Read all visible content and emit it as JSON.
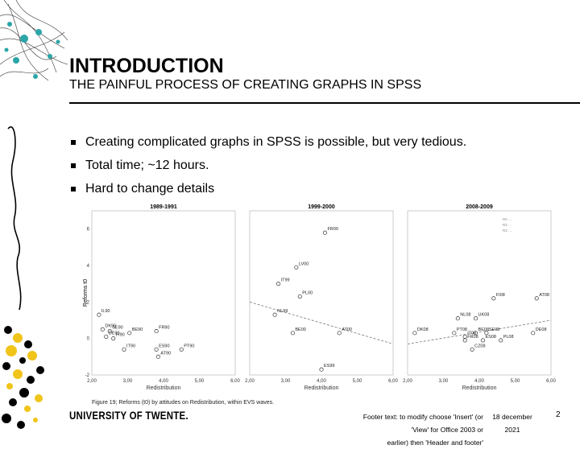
{
  "slide": {
    "title": "INTRODUCTION",
    "subtitle": "THE PAINFUL PROCESS OF CREATING GRAPHS IN SPSS",
    "bullets": [
      "Creating complicated graphs in SPSS is possible, but very tedious.",
      "Total time; ~12 hours.",
      "Hard to change details"
    ]
  },
  "figure": {
    "caption": "Figure 19; Reforms (t0) by attitudes on Redistribution, within EVS waves.",
    "legend_lines": [
      "R2 …",
      "R2 …",
      "R2 …"
    ]
  },
  "footer": {
    "logo": "UNIVERSITY OF TWENTE.",
    "text_line1": "Footer text: to modify choose 'Insert' (or 'View' for Office 2003 or",
    "text_line2": "earlier) then 'Header and footer'",
    "date_line1": "18 december",
    "date_line2": "2021",
    "page": "2"
  },
  "colors": {
    "accent_teal": "#2aa5a8",
    "accent_yellow": "#f0c419",
    "ink": "#000000"
  },
  "chart_data": {
    "type": "scatter",
    "ylabel": "Reforms t0",
    "xlabels": [
      "Redistribution",
      "Redistribution",
      "Redistribution"
    ],
    "ylim": [
      -2,
      7
    ],
    "xlim": [
      2.0,
      6.0
    ],
    "xticks": [
      "2,00",
      "3,00",
      "4,00",
      "5,00",
      "6,00"
    ],
    "yticks": [
      "-2",
      "0",
      "2",
      "4",
      "6"
    ],
    "panels": [
      {
        "title": "1989-1991",
        "points": [
          {
            "label": "IL90",
            "x": 2.2,
            "y": 1.3
          },
          {
            "label": "DK90",
            "x": 2.3,
            "y": 0.5
          },
          {
            "label": "SE90",
            "x": 2.5,
            "y": 0.4
          },
          {
            "label": "DE90",
            "x": 2.4,
            "y": 0.1
          },
          {
            "label": "FI90",
            "x": 2.6,
            "y": 0.0
          },
          {
            "label": "BE90",
            "x": 3.05,
            "y": 0.3
          },
          {
            "label": "FR90",
            "x": 3.8,
            "y": 0.4
          },
          {
            "label": "IT90",
            "x": 2.9,
            "y": -0.6
          },
          {
            "label": "ES90",
            "x": 3.8,
            "y": -0.6
          },
          {
            "label": "PT90",
            "x": 4.5,
            "y": -0.6
          },
          {
            "label": "AT90",
            "x": 3.85,
            "y": -1.0
          }
        ]
      },
      {
        "title": "1999-2000",
        "points": [
          {
            "label": "FR00",
            "x": 4.1,
            "y": 5.8
          },
          {
            "label": "LV00",
            "x": 3.3,
            "y": 3.9
          },
          {
            "label": "IT99",
            "x": 2.8,
            "y": 3.0
          },
          {
            "label": "PL00",
            "x": 3.4,
            "y": 2.3
          },
          {
            "label": "NL99",
            "x": 2.7,
            "y": 1.3
          },
          {
            "label": "BE00",
            "x": 3.2,
            "y": 0.3
          },
          {
            "label": "AT00",
            "x": 4.5,
            "y": 0.3
          },
          {
            "label": "ES99",
            "x": 4.0,
            "y": -1.7
          }
        ],
        "trend": [
          [
            2.0,
            2.0
          ],
          [
            6.0,
            -0.3
          ]
        ]
      },
      {
        "title": "2008-2009",
        "points": [
          {
            "label": "FI08",
            "x": 4.4,
            "y": 2.2
          },
          {
            "label": "AT08",
            "x": 5.6,
            "y": 2.2
          },
          {
            "label": "NL08",
            "x": 3.4,
            "y": 1.1
          },
          {
            "label": "UK08",
            "x": 3.9,
            "y": 1.1
          },
          {
            "label": "DK08",
            "x": 2.2,
            "y": 0.3
          },
          {
            "label": "PT08",
            "x": 3.3,
            "y": 0.3
          },
          {
            "label": "BE08",
            "x": 3.9,
            "y": 0.3
          },
          {
            "label": "SE08",
            "x": 4.2,
            "y": 0.3
          },
          {
            "label": "DE08",
            "x": 5.5,
            "y": 0.3
          },
          {
            "label": "IT08",
            "x": 3.6,
            "y": 0.1
          },
          {
            "label": "FR08",
            "x": 3.6,
            "y": -0.1
          },
          {
            "label": "ES08",
            "x": 4.1,
            "y": -0.1
          },
          {
            "label": "PL08",
            "x": 4.6,
            "y": -0.1
          },
          {
            "label": "CZ08",
            "x": 3.8,
            "y": -0.6
          }
        ],
        "trend": [
          [
            2.0,
            -0.3
          ],
          [
            6.0,
            1.0
          ]
        ]
      }
    ]
  }
}
